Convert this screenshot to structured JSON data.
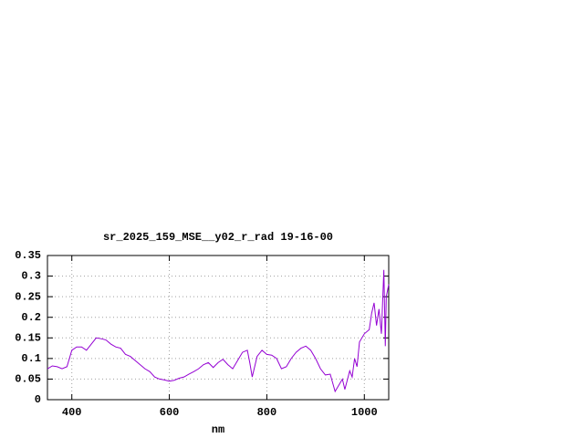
{
  "chart_data": {
    "type": "line",
    "title": "sr_2025_159_MSE__y02_r_rad 19-16-00",
    "x_label": "nm",
    "x": [
      350,
      360,
      370,
      380,
      390,
      400,
      410,
      420,
      430,
      440,
      450,
      460,
      470,
      480,
      490,
      500,
      510,
      520,
      530,
      540,
      550,
      560,
      570,
      580,
      590,
      600,
      610,
      620,
      630,
      640,
      650,
      660,
      670,
      680,
      690,
      700,
      710,
      720,
      730,
      740,
      750,
      760,
      765,
      770,
      780,
      790,
      800,
      810,
      820,
      830,
      840,
      850,
      860,
      870,
      880,
      890,
      900,
      910,
      920,
      930,
      940,
      950,
      955,
      960,
      970,
      975,
      980,
      985,
      990,
      1000,
      1010,
      1015,
      1020,
      1025,
      1030,
      1035,
      1040,
      1043,
      1045,
      1050
    ],
    "series": [
      {
        "color": "#9400d3",
        "values": [
          0.075,
          0.082,
          0.08,
          0.075,
          0.08,
          0.12,
          0.128,
          0.128,
          0.12,
          0.135,
          0.15,
          0.148,
          0.145,
          0.135,
          0.128,
          0.125,
          0.11,
          0.105,
          0.095,
          0.085,
          0.075,
          0.068,
          0.055,
          0.05,
          0.048,
          0.045,
          0.047,
          0.052,
          0.055,
          0.062,
          0.068,
          0.075,
          0.085,
          0.09,
          0.078,
          0.09,
          0.098,
          0.085,
          0.075,
          0.095,
          0.115,
          0.12,
          0.09,
          0.055,
          0.105,
          0.12,
          0.11,
          0.108,
          0.1,
          0.075,
          0.08,
          0.1,
          0.115,
          0.125,
          0.13,
          0.12,
          0.1,
          0.075,
          0.06,
          0.062,
          0.02,
          0.04,
          0.05,
          0.025,
          0.07,
          0.055,
          0.1,
          0.08,
          0.14,
          0.16,
          0.17,
          0.21,
          0.235,
          0.18,
          0.22,
          0.16,
          0.315,
          0.13,
          0.25,
          0.28
        ]
      }
    ],
    "xlim": [
      350,
      1050
    ],
    "xticks": [
      400,
      600,
      800,
      1000
    ],
    "ylim": [
      0,
      0.35
    ],
    "yticks": [
      0,
      0.05,
      0.1,
      0.15,
      0.2,
      0.25,
      0.3,
      0.35
    ],
    "grid": true
  }
}
